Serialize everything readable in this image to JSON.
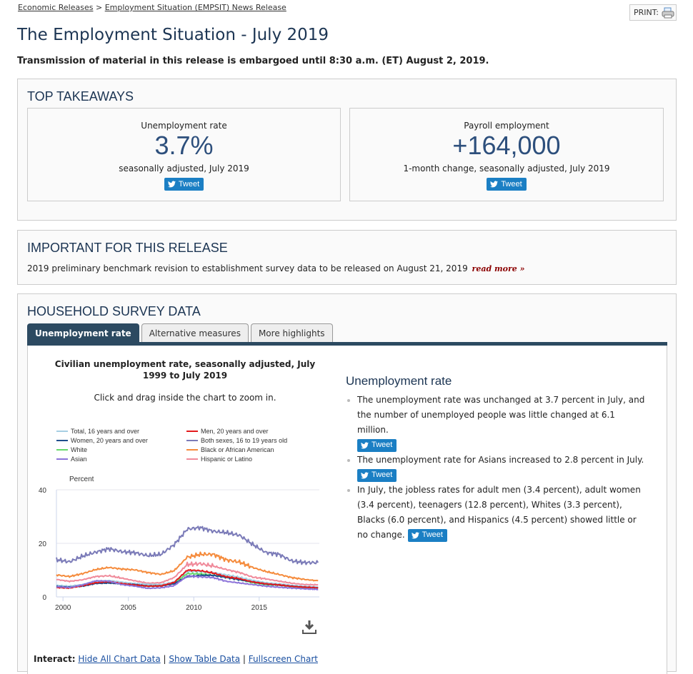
{
  "breadcrumb": {
    "items": [
      "Economic Releases",
      "Employment Situation (EMPSIT) News Release"
    ],
    "separator": ">"
  },
  "print": {
    "label": "PRINT:",
    "icon": "printer-icon"
  },
  "page_title": "The Employment Situation - July 2019",
  "embargo": "Transmission of material in this release is embargoed until 8:30 a.m. (ET) August 2, 2019.",
  "top_takeaways": {
    "heading": "TOP TAKEAWAYS",
    "cards": [
      {
        "label": "Unemployment rate",
        "value": "3.7%",
        "sub": "seasonally adjusted, July 2019",
        "tweet": "Tweet"
      },
      {
        "label": "Payroll employment",
        "value": "+164,000",
        "sub": "1-month change, seasonally adjusted, July 2019",
        "tweet": "Tweet"
      }
    ]
  },
  "important": {
    "heading": "IMPORTANT FOR THIS RELEASE",
    "text": "2019 preliminary benchmark revision to establishment survey data to be released on August 21, 2019",
    "link": "read more »"
  },
  "household": {
    "heading": "HOUSEHOLD SURVEY DATA",
    "tabs": [
      {
        "label": "Unemployment rate",
        "active": true
      },
      {
        "label": "Alternative measures",
        "active": false
      },
      {
        "label": "More highlights",
        "active": false
      }
    ],
    "chart_title": "Civilian unemployment rate, seasonally adjusted, July 1999 to July 2019",
    "chart_hint": "Click and drag inside the chart to zoom in.",
    "interact": {
      "label": "Interact:",
      "links": [
        "Hide All Chart Data",
        "Show Table Data",
        "Fullscreen Chart"
      ],
      "separator": "|"
    },
    "highlights": {
      "heading": "Unemployment rate",
      "items": [
        {
          "text": "The unemployment rate was unchanged at 3.7 percent in July, and the number of unemployed people was little changed at 6.1 million.",
          "tweet": "Tweet"
        },
        {
          "text": "The unemployment rate for Asians increased to 2.8 percent in July.",
          "tweet": "Tweet"
        },
        {
          "text": "In July, the jobless rates for adult men (3.4 percent), adult women (3.4 percent), teenagers (12.8 percent), Whites (3.3 percent), Blacks (6.0 percent), and Hispanics (4.5 percent) showed little or no change.",
          "tweet": "Tweet"
        }
      ]
    }
  },
  "chart_data": {
    "type": "line",
    "title": "Civilian unemployment rate, seasonally adjusted, July 1999 to July 2019",
    "ylabel": "Percent",
    "xlabel": "",
    "ylim": [
      0,
      40
    ],
    "xlim": [
      1999.5,
      2019.6
    ],
    "yticks": [
      0,
      20,
      40
    ],
    "xticks": [
      2000,
      2005,
      2010,
      2015
    ],
    "grid": true,
    "legend_position": "top",
    "x": [
      1999.5,
      2000.5,
      2001.5,
      2002.5,
      2003.5,
      2004.5,
      2005.5,
      2006.5,
      2007.5,
      2008.5,
      2009.5,
      2010.5,
      2011.5,
      2012.5,
      2013.5,
      2014.5,
      2015.5,
      2016.5,
      2017.5,
      2018.5,
      2019.5
    ],
    "series": [
      {
        "name": "Total, 16 years and over",
        "color": "#a6cee3",
        "values": [
          4.3,
          4.0,
          4.6,
          5.8,
          6.1,
          5.5,
          5.0,
          4.7,
          4.6,
          5.6,
          9.5,
          9.4,
          9.0,
          8.2,
          7.3,
          6.2,
          5.3,
          4.9,
          4.3,
          3.9,
          3.7
        ]
      },
      {
        "name": "Men, 20 years and over",
        "color": "#e31a1c",
        "values": [
          3.5,
          3.3,
          4.2,
          5.3,
          5.7,
          5.0,
          4.4,
          4.0,
          4.1,
          5.4,
          10.0,
          9.8,
          8.9,
          7.5,
          6.8,
          5.6,
          4.9,
          4.5,
          3.9,
          3.6,
          3.4
        ]
      },
      {
        "name": "Women, 20 years and over",
        "color": "#1f4e8c",
        "values": [
          3.9,
          3.6,
          4.0,
          5.0,
          5.2,
          4.9,
          4.6,
          4.1,
          4.1,
          4.9,
          7.6,
          8.0,
          8.0,
          7.3,
          6.4,
          5.6,
          4.8,
          4.4,
          4.0,
          3.6,
          3.4
        ]
      },
      {
        "name": "Both sexes, 16 to 19 years old",
        "color": "#7b7bb8",
        "values": [
          13.9,
          13.1,
          15.2,
          16.7,
          18.0,
          16.9,
          16.5,
          15.4,
          15.9,
          19.5,
          25.3,
          25.9,
          24.5,
          24.0,
          23.0,
          19.6,
          16.6,
          15.9,
          13.4,
          12.8,
          12.8
        ]
      },
      {
        "name": "White",
        "color": "#66d96b",
        "values": [
          3.8,
          3.6,
          4.3,
          5.2,
          5.3,
          4.8,
          4.3,
          4.0,
          4.1,
          5.1,
          8.7,
          8.6,
          8.1,
          7.3,
          6.5,
          5.3,
          4.6,
          4.4,
          3.8,
          3.5,
          3.3
        ]
      },
      {
        "name": "Black or African American",
        "color": "#f58b3c",
        "values": [
          8.2,
          7.6,
          8.7,
          10.2,
          11.0,
          10.4,
          10.1,
          9.1,
          8.4,
          9.8,
          14.8,
          15.9,
          15.9,
          13.8,
          13.0,
          11.0,
          9.5,
          8.4,
          7.2,
          6.5,
          6.0
        ]
      },
      {
        "name": "Asian",
        "color": "#8c73d9",
        "values": [
          3.8,
          3.5,
          4.5,
          6.0,
          5.9,
          4.6,
          4.0,
          3.2,
          3.4,
          4.2,
          7.8,
          7.5,
          7.2,
          5.8,
          5.2,
          4.6,
          4.0,
          3.6,
          3.3,
          3.0,
          2.8
        ]
      },
      {
        "name": "Hispanic or Latino",
        "color": "#f08a9a",
        "values": [
          6.5,
          5.8,
          6.4,
          7.6,
          7.9,
          7.0,
          6.0,
          5.1,
          5.3,
          7.2,
          12.1,
          12.4,
          11.5,
          10.2,
          9.1,
          7.4,
          6.7,
          5.9,
          5.1,
          4.6,
          4.5
        ]
      }
    ]
  }
}
